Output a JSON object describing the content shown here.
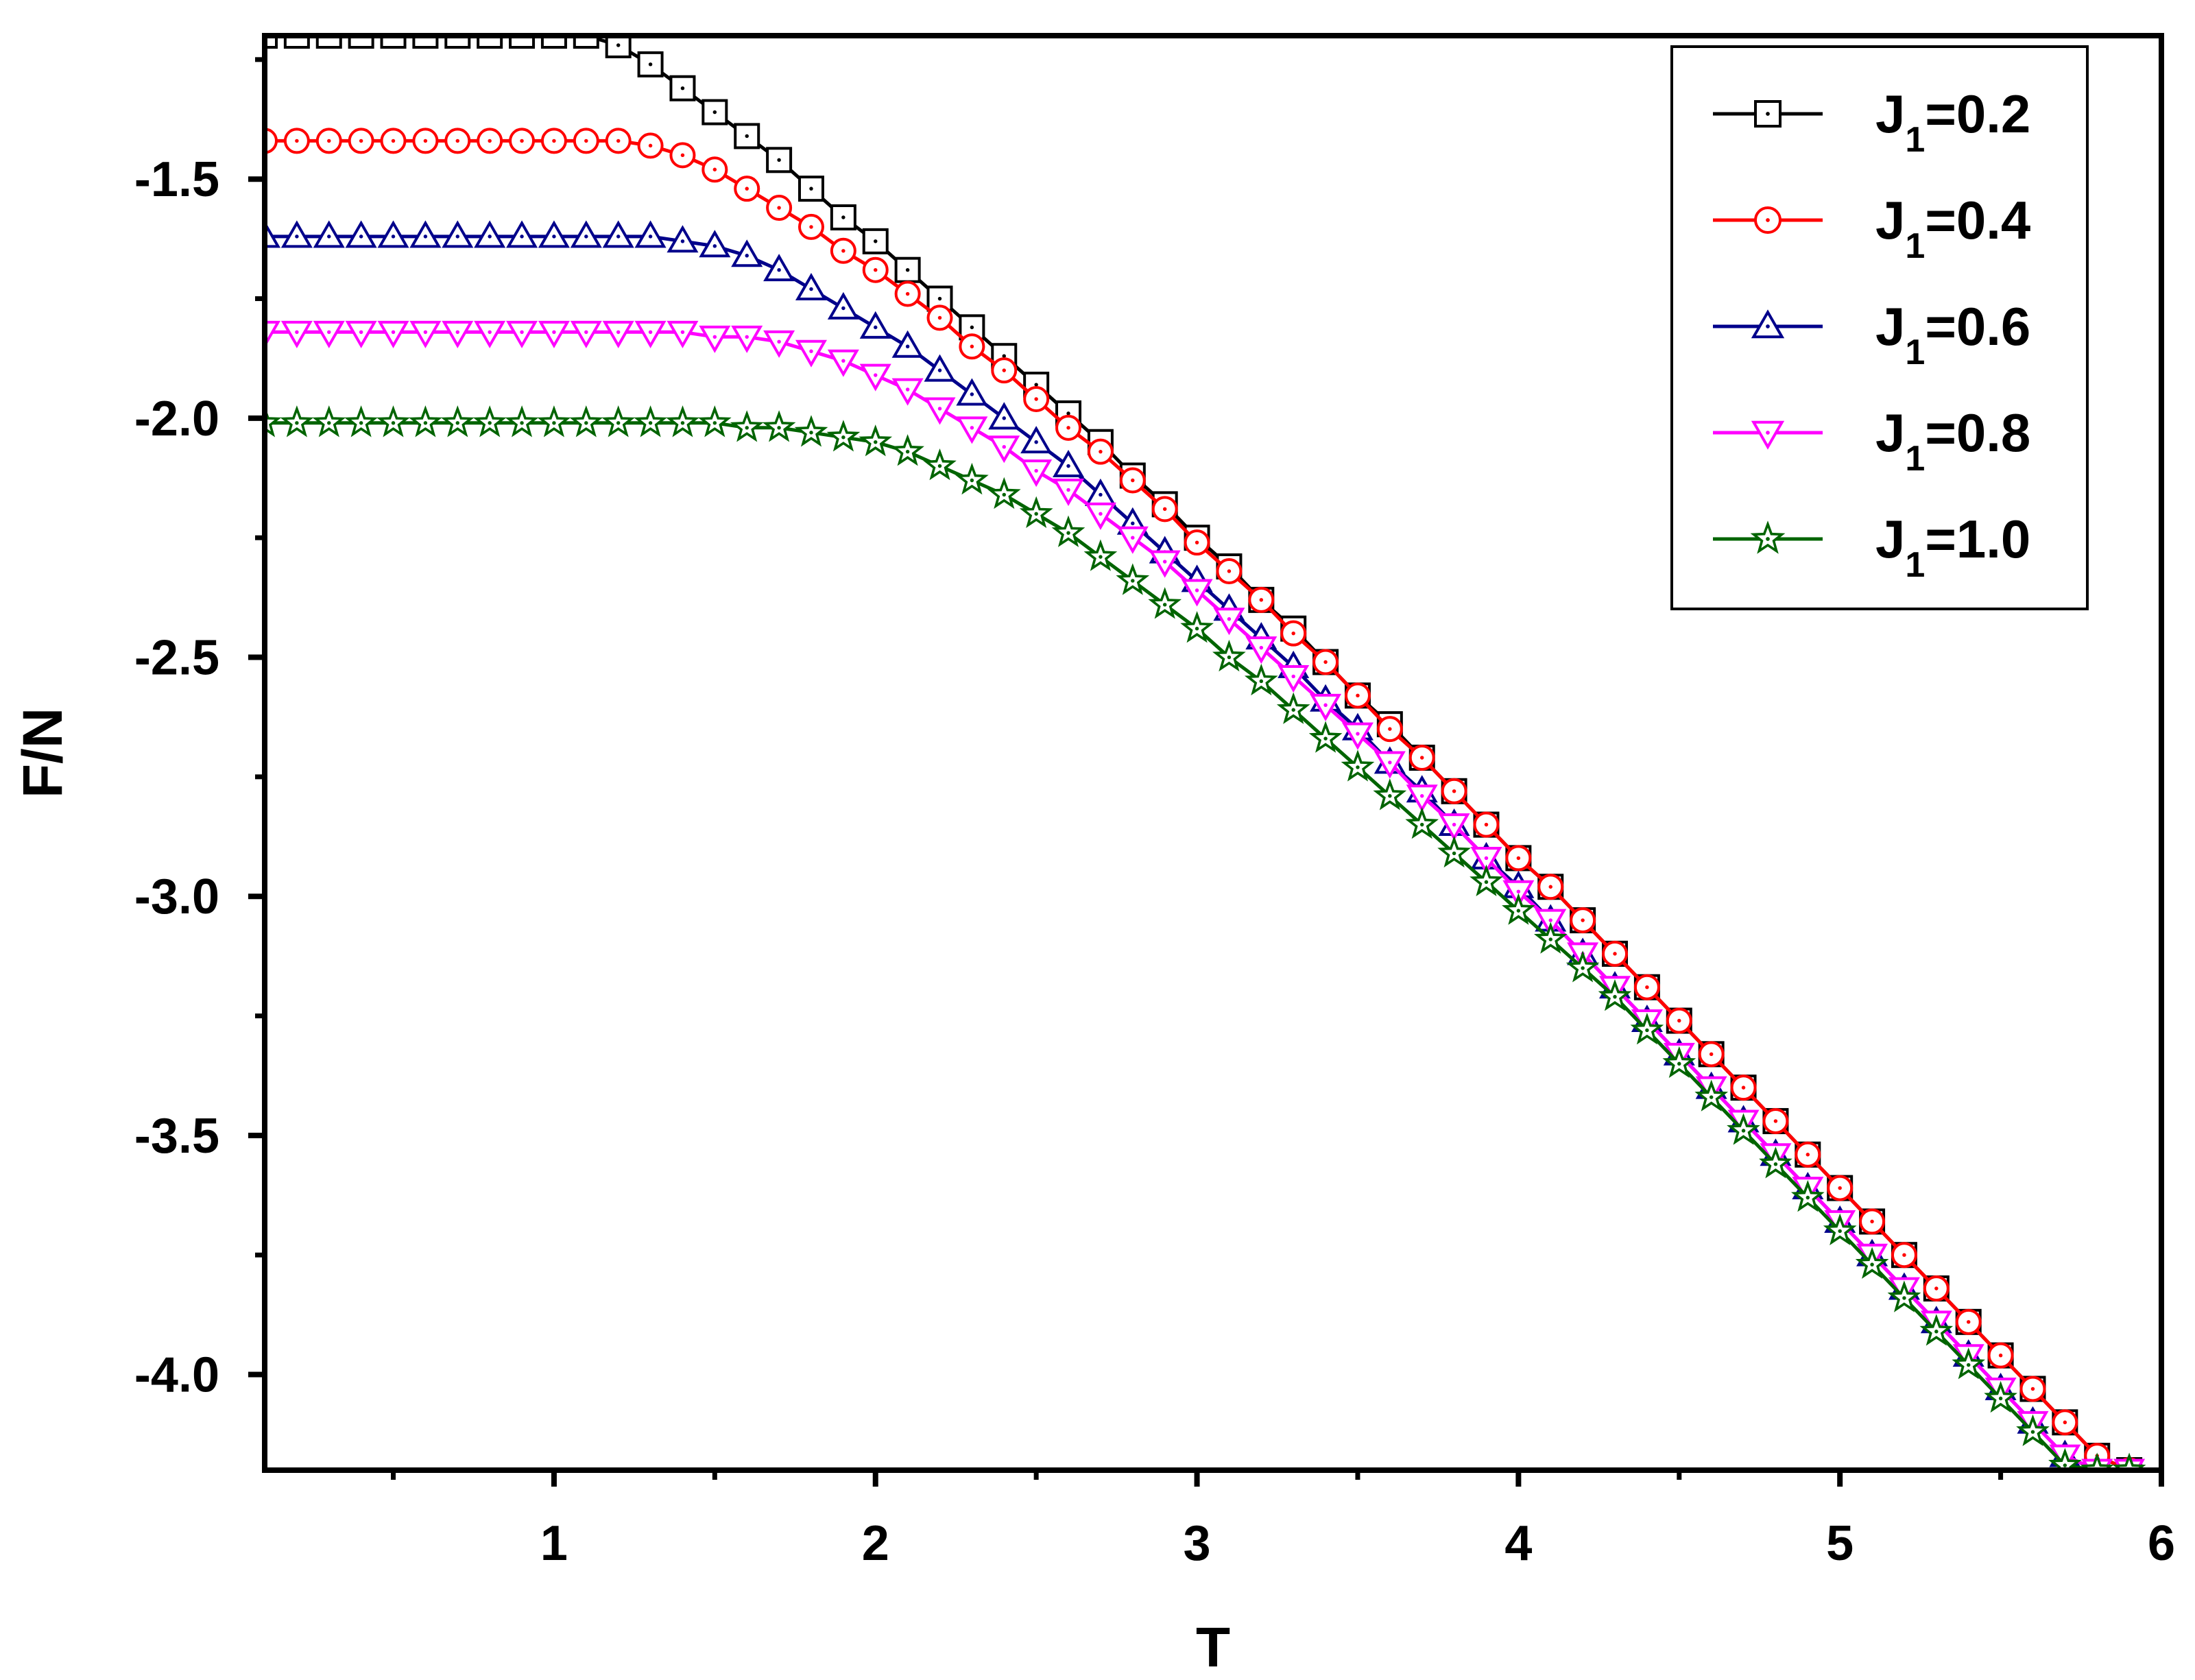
{
  "chart_data": {
    "type": "line",
    "title": "",
    "xlabel": "T",
    "ylabel": "F/N",
    "xlim": [
      0.1,
      6.0
    ],
    "ylim": [
      -4.2,
      -1.2
    ],
    "xticks": [
      1,
      2,
      3,
      4,
      5,
      6
    ],
    "xtick_labels": [
      "1",
      "2",
      "3",
      "4",
      "5",
      "6"
    ],
    "yticks": [
      -1.5,
      -2.0,
      -2.5,
      -3.0,
      -3.5,
      -4.0
    ],
    "ytick_labels": [
      "-1.5",
      "-2.0",
      "-2.5",
      "-3.0",
      "-3.5",
      "-4.0"
    ],
    "grid": false,
    "legend_position": "top-right",
    "x": [
      0.1,
      0.2,
      0.3,
      0.4,
      0.5,
      0.6,
      0.7,
      0.8,
      0.9,
      1.0,
      1.1,
      1.2,
      1.3,
      1.4,
      1.5,
      1.6,
      1.7,
      1.8,
      1.9,
      2.0,
      2.1,
      2.2,
      2.3,
      2.4,
      2.5,
      2.6,
      2.7,
      2.8,
      2.9,
      3.0,
      3.1,
      3.2,
      3.3,
      3.4,
      3.5,
      3.6,
      3.7,
      3.8,
      3.9,
      4.0,
      4.1,
      4.2,
      4.3,
      4.4,
      4.5,
      4.6,
      4.7,
      4.8,
      4.9,
      5.0,
      5.1,
      5.2,
      5.3,
      5.4,
      5.5,
      5.6,
      5.7,
      5.8,
      5.9
    ],
    "series": [
      {
        "name_main": "J",
        "name_sub": "1",
        "name_value": "=0.2",
        "color": "#000000",
        "marker": "square",
        "values": [
          -1.2,
          -1.2,
          -1.2,
          -1.2,
          -1.2,
          -1.2,
          -1.2,
          -1.2,
          -1.2,
          -1.2,
          -1.2,
          -1.22,
          -1.26,
          -1.31,
          -1.36,
          -1.41,
          -1.46,
          -1.52,
          -1.58,
          -1.63,
          -1.69,
          -1.75,
          -1.81,
          -1.87,
          -1.93,
          -1.99,
          -2.05,
          -2.12,
          -2.18,
          -2.25,
          -2.31,
          -2.38,
          -2.44,
          -2.51,
          -2.58,
          -2.64,
          -2.71,
          -2.78,
          -2.85,
          -2.92,
          -2.98,
          -3.05,
          -3.12,
          -3.19,
          -3.26,
          -3.33,
          -3.4,
          -3.47,
          -3.54,
          -3.61,
          -3.68,
          -3.75,
          -3.82,
          -3.89,
          -3.96,
          -4.03,
          -4.1,
          -4.17,
          -4.2
        ]
      },
      {
        "name_main": "J",
        "name_sub": "1",
        "name_value": "=0.4",
        "color": "#ff0000",
        "marker": "circle",
        "values": [
          -1.42,
          -1.42,
          -1.42,
          -1.42,
          -1.42,
          -1.42,
          -1.42,
          -1.42,
          -1.42,
          -1.42,
          -1.42,
          -1.42,
          -1.43,
          -1.45,
          -1.48,
          -1.52,
          -1.56,
          -1.6,
          -1.65,
          -1.69,
          -1.74,
          -1.79,
          -1.85,
          -1.9,
          -1.96,
          -2.02,
          -2.07,
          -2.13,
          -2.19,
          -2.26,
          -2.32,
          -2.38,
          -2.45,
          -2.51,
          -2.58,
          -2.65,
          -2.71,
          -2.78,
          -2.85,
          -2.92,
          -2.98,
          -3.05,
          -3.12,
          -3.19,
          -3.26,
          -3.33,
          -3.4,
          -3.47,
          -3.54,
          -3.61,
          -3.68,
          -3.75,
          -3.82,
          -3.89,
          -3.96,
          -4.03,
          -4.1,
          -4.17,
          -4.2
        ]
      },
      {
        "name_main": "J",
        "name_sub": "1",
        "name_value": "=0.6",
        "color": "#00008b",
        "marker": "triangle-up",
        "values": [
          -1.62,
          -1.62,
          -1.62,
          -1.62,
          -1.62,
          -1.62,
          -1.62,
          -1.62,
          -1.62,
          -1.62,
          -1.62,
          -1.62,
          -1.62,
          -1.63,
          -1.64,
          -1.66,
          -1.69,
          -1.73,
          -1.77,
          -1.81,
          -1.85,
          -1.9,
          -1.95,
          -2.0,
          -2.05,
          -2.1,
          -2.16,
          -2.22,
          -2.28,
          -2.34,
          -2.4,
          -2.46,
          -2.52,
          -2.59,
          -2.65,
          -2.72,
          -2.78,
          -2.85,
          -2.92,
          -2.98,
          -3.05,
          -3.12,
          -3.19,
          -3.26,
          -3.33,
          -3.4,
          -3.47,
          -3.54,
          -3.61,
          -3.68,
          -3.75,
          -3.82,
          -3.89,
          -3.96,
          -4.03,
          -4.1,
          -4.17,
          -4.2,
          -4.2
        ]
      },
      {
        "name_main": "J",
        "name_sub": "1",
        "name_value": "=0.8",
        "color": "#ff00ff",
        "marker": "triangle-down",
        "values": [
          -1.82,
          -1.82,
          -1.82,
          -1.82,
          -1.82,
          -1.82,
          -1.82,
          -1.82,
          -1.82,
          -1.82,
          -1.82,
          -1.82,
          -1.82,
          -1.82,
          -1.83,
          -1.83,
          -1.84,
          -1.86,
          -1.88,
          -1.91,
          -1.94,
          -1.98,
          -2.02,
          -2.06,
          -2.11,
          -2.15,
          -2.2,
          -2.25,
          -2.3,
          -2.36,
          -2.42,
          -2.48,
          -2.54,
          -2.6,
          -2.66,
          -2.72,
          -2.79,
          -2.85,
          -2.92,
          -2.99,
          -3.05,
          -3.12,
          -3.19,
          -3.26,
          -3.33,
          -3.4,
          -3.47,
          -3.54,
          -3.61,
          -3.68,
          -3.75,
          -3.82,
          -3.89,
          -3.96,
          -4.03,
          -4.1,
          -4.17,
          -4.2,
          -4.2
        ]
      },
      {
        "name_main": "J",
        "name_sub": "1",
        "name_value": "=1.0",
        "color": "#006400",
        "marker": "star",
        "values": [
          -2.01,
          -2.01,
          -2.01,
          -2.01,
          -2.01,
          -2.01,
          -2.01,
          -2.01,
          -2.01,
          -2.01,
          -2.01,
          -2.01,
          -2.01,
          -2.01,
          -2.01,
          -2.02,
          -2.02,
          -2.03,
          -2.04,
          -2.05,
          -2.07,
          -2.1,
          -2.13,
          -2.16,
          -2.2,
          -2.24,
          -2.29,
          -2.34,
          -2.39,
          -2.44,
          -2.5,
          -2.55,
          -2.61,
          -2.67,
          -2.73,
          -2.79,
          -2.85,
          -2.91,
          -2.97,
          -3.03,
          -3.09,
          -3.15,
          -3.21,
          -3.28,
          -3.35,
          -3.42,
          -3.49,
          -3.56,
          -3.63,
          -3.7,
          -3.77,
          -3.84,
          -3.91,
          -3.98,
          -4.05,
          -4.12,
          -4.19,
          -4.2,
          -4.2
        ]
      }
    ]
  }
}
